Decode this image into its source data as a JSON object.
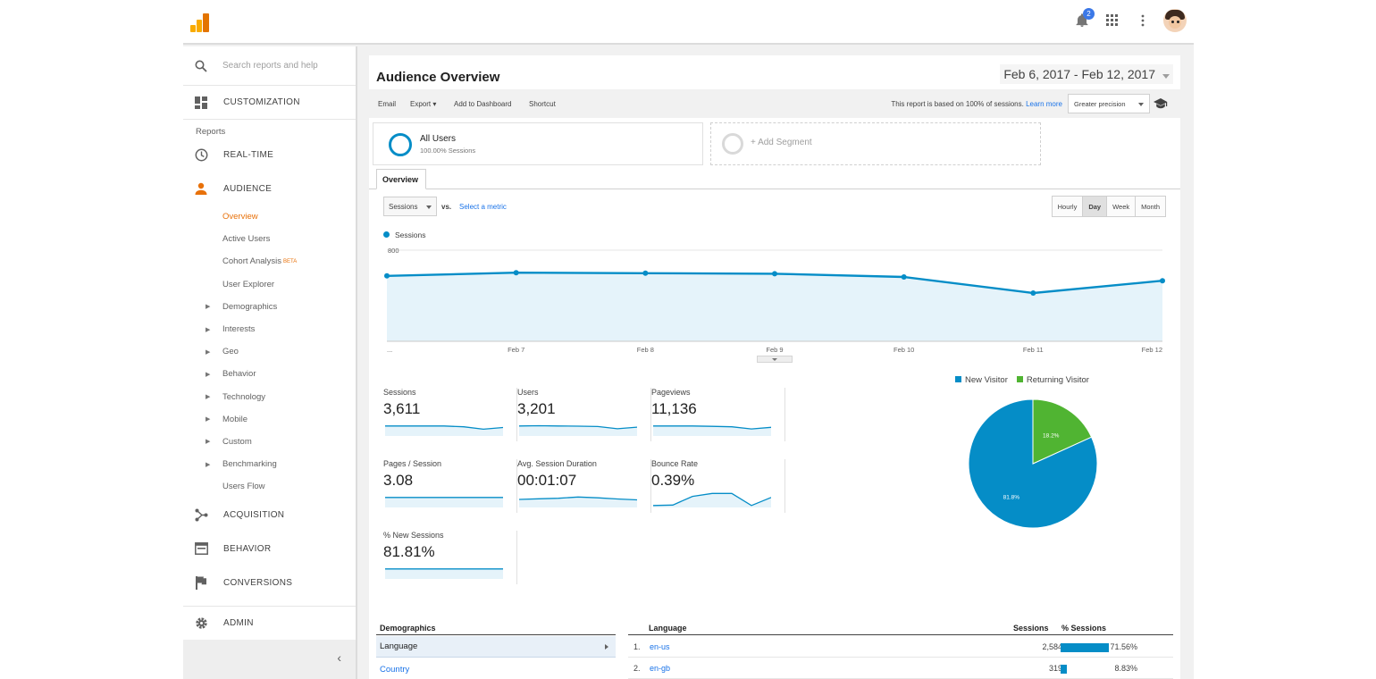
{
  "search": {
    "placeholder": "Search reports and help"
  },
  "nav": {
    "customization": "CUSTOMIZATION",
    "reports_heading": "Reports",
    "realtime": "REAL-TIME",
    "audience": "AUDIENCE",
    "audience_sub": [
      "Overview",
      "Active Users",
      "Cohort Analysis",
      "User Explorer"
    ],
    "cohort_badge": "BETA",
    "audience_groups": [
      "Demographics",
      "Interests",
      "Geo",
      "Behavior",
      "Technology",
      "Mobile",
      "Custom",
      "Benchmarking"
    ],
    "users_flow": "Users Flow",
    "acquisition": "ACQUISITION",
    "behavior": "BEHAVIOR",
    "conversions": "CONVERSIONS",
    "admin": "ADMIN"
  },
  "header": {
    "notification_count": "2"
  },
  "report": {
    "title": "Audience Overview",
    "date_range": "Feb 6, 2017 - Feb 12, 2017"
  },
  "toolbar": {
    "email": "Email",
    "export": "Export",
    "add_to_dashboard": "Add to Dashboard",
    "shortcut": "Shortcut",
    "note": "This report is based on 100% of sessions.",
    "learn_more": "Learn more",
    "precision": "Greater precision"
  },
  "segments": {
    "all_users": "All Users",
    "all_users_pct": "100.00% Sessions",
    "add_segment": "+ Add Segment"
  },
  "tab": "Overview",
  "metric_picker": {
    "metric": "Sessions",
    "vs": "vs.",
    "select": "Select a metric"
  },
  "granularity": {
    "options": [
      "Hourly",
      "Day",
      "Week",
      "Month"
    ],
    "selected": "Day"
  },
  "chart_data": {
    "type": "area",
    "series": [
      {
        "name": "Sessions",
        "values": [
          560,
          590,
          585,
          580,
          550,
          400,
          515
        ]
      }
    ],
    "x": [
      "...",
      "Feb 7",
      "Feb 8",
      "Feb 9",
      "Feb 10",
      "Feb 11",
      "Feb 12"
    ],
    "ylim": [
      200,
      800
    ],
    "yticks": [
      "800",
      "400"
    ],
    "color": "#058dc7",
    "fill": "#e5f3fa"
  },
  "scorecards": [
    {
      "label": "Sessions",
      "value": "3,611",
      "spark": [
        5,
        5,
        5,
        5,
        4.6,
        3.4,
        4.2
      ]
    },
    {
      "label": "Users",
      "value": "3,201",
      "spark": [
        5,
        5.1,
        5,
        4.9,
        4.7,
        3.6,
        4.4
      ]
    },
    {
      "label": "Pageviews",
      "value": "11,136",
      "spark": [
        5,
        5,
        5,
        4.8,
        4.6,
        3.5,
        4.3
      ]
    },
    {
      "label": "Pages / Session",
      "value": "3.08",
      "spark": [
        5,
        5,
        5,
        5,
        5,
        5,
        5
      ]
    },
    {
      "label": "Avg. Session Duration",
      "value": "00:01:07",
      "spark": [
        4,
        4.3,
        4.6,
        5.2,
        4.8,
        4.2,
        3.8
      ]
    },
    {
      "label": "Bounce Rate",
      "value": "0.39%",
      "spark": [
        1,
        1.2,
        5.5,
        7,
        7,
        1,
        5
      ]
    },
    {
      "label": "% New Sessions",
      "value": "81.81%",
      "spark": [
        5,
        5,
        5,
        5,
        5,
        5,
        5
      ]
    }
  ],
  "pie": {
    "legend": [
      {
        "label": "New Visitor",
        "color": "#058dc7"
      },
      {
        "label": "Returning Visitor",
        "color": "#50b432"
      }
    ],
    "slices": [
      {
        "label": "81.8%",
        "value": 81.8
      },
      {
        "label": "18.2%",
        "value": 18.2
      }
    ]
  },
  "demographics": {
    "heading": "Demographics",
    "rows": [
      "Language",
      "Country"
    ]
  },
  "language_table": {
    "headers": {
      "language": "Language",
      "sessions": "Sessions",
      "pct": "% Sessions"
    },
    "rows": [
      {
        "n": "1.",
        "name": "en-us",
        "sessions": "2,584",
        "pct": "71.56%",
        "frac": 0.7156
      },
      {
        "n": "2.",
        "name": "en-gb",
        "sessions": "319",
        "pct": "8.83%",
        "frac": 0.0883
      }
    ]
  }
}
